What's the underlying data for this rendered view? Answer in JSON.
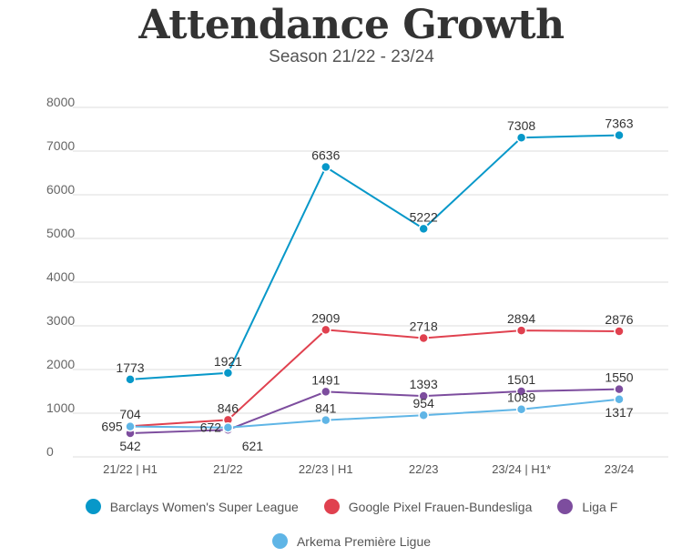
{
  "chart_data": {
    "type": "line",
    "title": "Attendance Growth",
    "subtitle": "Season 21/22 - 23/24",
    "categories": [
      "21/22 | H1",
      "21/22",
      "22/23 | H1",
      "22/23",
      "23/24 | H1*",
      "23/24"
    ],
    "ylim": [
      0,
      8000
    ],
    "yticks": [
      0,
      1000,
      2000,
      3000,
      4000,
      5000,
      6000,
      7000,
      8000
    ],
    "grid": true,
    "legend_position": "bottom",
    "series": [
      {
        "name": "Barclays Women's Super League",
        "color": "#0798c9",
        "values": [
          1773,
          1921,
          6636,
          5222,
          7308,
          7363
        ]
      },
      {
        "name": "Google Pixel Frauen-Bundesliga",
        "color": "#e0414f",
        "values": [
          704,
          846,
          2909,
          2718,
          2894,
          2876
        ]
      },
      {
        "name": "Liga F",
        "color": "#7d4d9e",
        "values": [
          542,
          621,
          1491,
          1393,
          1501,
          1550
        ]
      },
      {
        "name": "Arkema Première Ligue",
        "color": "#5fb5e6",
        "values": [
          695,
          672,
          841,
          954,
          1089,
          1317
        ]
      }
    ]
  }
}
